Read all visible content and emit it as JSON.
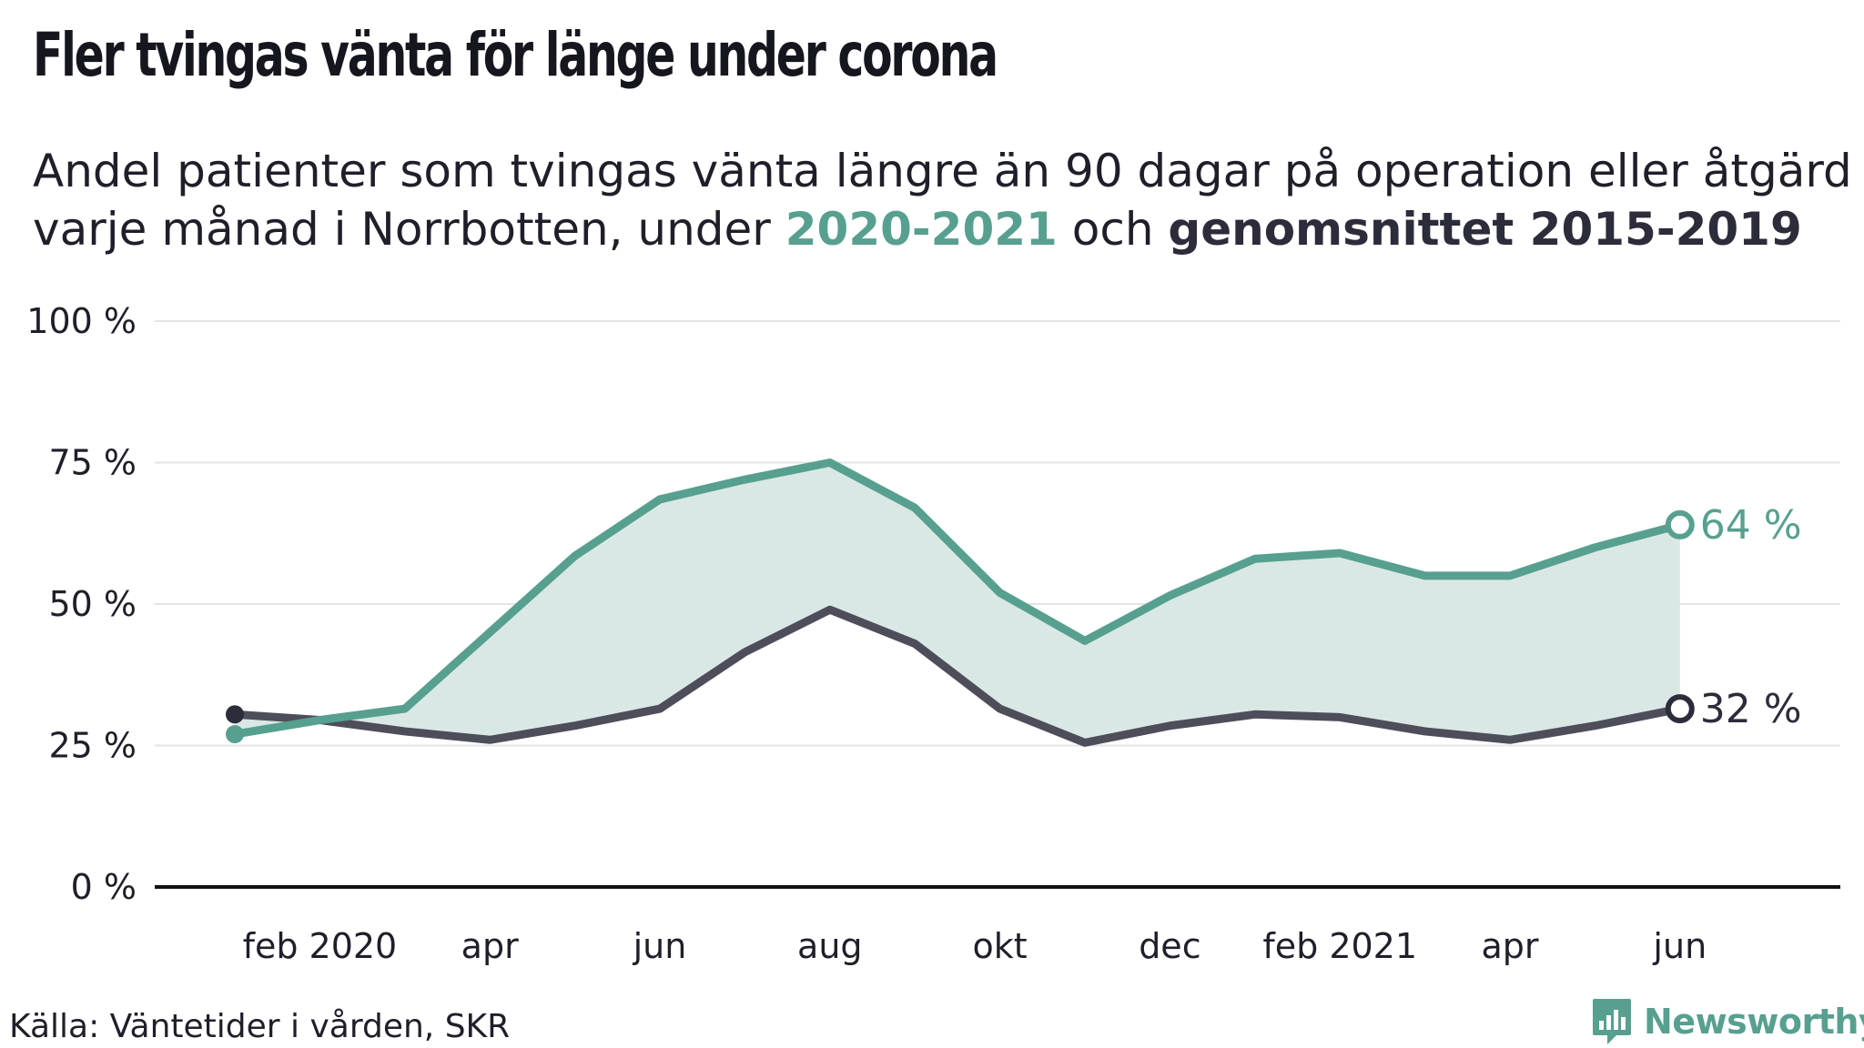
{
  "header": {
    "title": "Fler tvingas vänta för länge under corona",
    "subtitle_part1": "Andel patienter som tvingas vänta längre än 90 dagar på operation eller åtgärd varje månad i Norrbotten, under ",
    "subtitle_highlight1": "2020-2021",
    "subtitle_part2": " och ",
    "subtitle_highlight2": "genomsnittet 2015-2019"
  },
  "footer": {
    "source": "Källa: Väntetider i vården, SKR",
    "brand": "Newsworthy"
  },
  "colors": {
    "series_2020_2021": "#57a08f",
    "series_average": "#4e4e5a",
    "fill": "#dae8e5",
    "brand": "#57a08f"
  },
  "icons": {
    "brand_logo": "newsworthy-logo-icon"
  },
  "chart_data": {
    "type": "line",
    "title": "Fler tvingas vänta för länge under corona",
    "xlabel": "",
    "ylabel": "",
    "ylim": [
      0,
      100
    ],
    "y_ticks": [
      0,
      25,
      50,
      75,
      100
    ],
    "y_tick_labels": [
      "0 %",
      "25 %",
      "50 %",
      "75 %",
      "100 %"
    ],
    "y_unit": "%",
    "x": [
      "2020-01",
      "2020-02",
      "2020-03",
      "2020-04",
      "2020-05",
      "2020-06",
      "2020-07",
      "2020-08",
      "2020-09",
      "2020-10",
      "2020-11",
      "2020-12",
      "2021-01",
      "2021-02",
      "2021-03",
      "2021-04",
      "2021-05",
      "2021-06"
    ],
    "x_tick_labels": [
      {
        "x": "2020-02",
        "label": "feb 2020"
      },
      {
        "x": "2020-04",
        "label": "apr"
      },
      {
        "x": "2020-06",
        "label": "jun"
      },
      {
        "x": "2020-08",
        "label": "aug"
      },
      {
        "x": "2020-10",
        "label": "okt"
      },
      {
        "x": "2020-12",
        "label": "dec"
      },
      {
        "x": "2021-02",
        "label": "feb 2021"
      },
      {
        "x": "2021-04",
        "label": "apr"
      },
      {
        "x": "2021-06",
        "label": "jun"
      }
    ],
    "series": [
      {
        "key": "series_2020_2021",
        "values": [
          27,
          29.5,
          31.5,
          45,
          58.5,
          68.5,
          72,
          75,
          67,
          52,
          43.5,
          51.5,
          58,
          59,
          55,
          55,
          60,
          64
        ],
        "end_label": "64 %"
      },
      {
        "key": "series_average",
        "values": [
          30.5,
          29.5,
          27.5,
          26,
          28.5,
          31.5,
          41.5,
          49,
          43,
          31.5,
          25.5,
          28.5,
          30.5,
          30,
          27.5,
          26,
          28.5,
          31.5
        ],
        "end_label": "32 %"
      }
    ],
    "fill_between_series": true,
    "grid": true,
    "legend": "none"
  }
}
